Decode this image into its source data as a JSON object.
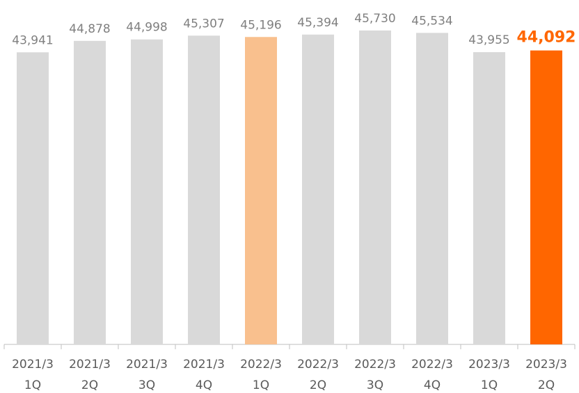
{
  "chart_data": {
    "type": "bar",
    "categories": [
      [
        "2021/3",
        "1Q"
      ],
      [
        "2021/3",
        "2Q"
      ],
      [
        "2021/3",
        "3Q"
      ],
      [
        "2021/3",
        "4Q"
      ],
      [
        "2022/3",
        "1Q"
      ],
      [
        "2022/3",
        "2Q"
      ],
      [
        "2022/3",
        "3Q"
      ],
      [
        "2022/3",
        "4Q"
      ],
      [
        "2023/3",
        "1Q"
      ],
      [
        "2023/3",
        "2Q"
      ]
    ],
    "values": [
      43941,
      44878,
      44998,
      45307,
      45196,
      45394,
      45730,
      45534,
      43955,
      44092
    ],
    "value_labels": [
      "43,941",
      "44,878",
      "44,998",
      "45,307",
      "45,196",
      "45,394",
      "45,730",
      "45,534",
      "43,955",
      "44,092"
    ],
    "colors": [
      "#d9d9d9",
      "#d9d9d9",
      "#d9d9d9",
      "#d9d9d9",
      "#f9c08e",
      "#d9d9d9",
      "#d9d9d9",
      "#d9d9d9",
      "#d9d9d9",
      "#ff6600"
    ],
    "label_colors": [
      "#7f7f7f",
      "#7f7f7f",
      "#7f7f7f",
      "#7f7f7f",
      "#7f7f7f",
      "#7f7f7f",
      "#7f7f7f",
      "#7f7f7f",
      "#7f7f7f",
      "#ff6600"
    ],
    "label_weights": [
      "normal",
      "normal",
      "normal",
      "normal",
      "normal",
      "normal",
      "normal",
      "normal",
      "normal",
      "bold"
    ],
    "ylim": [
      20000,
      48000
    ]
  }
}
